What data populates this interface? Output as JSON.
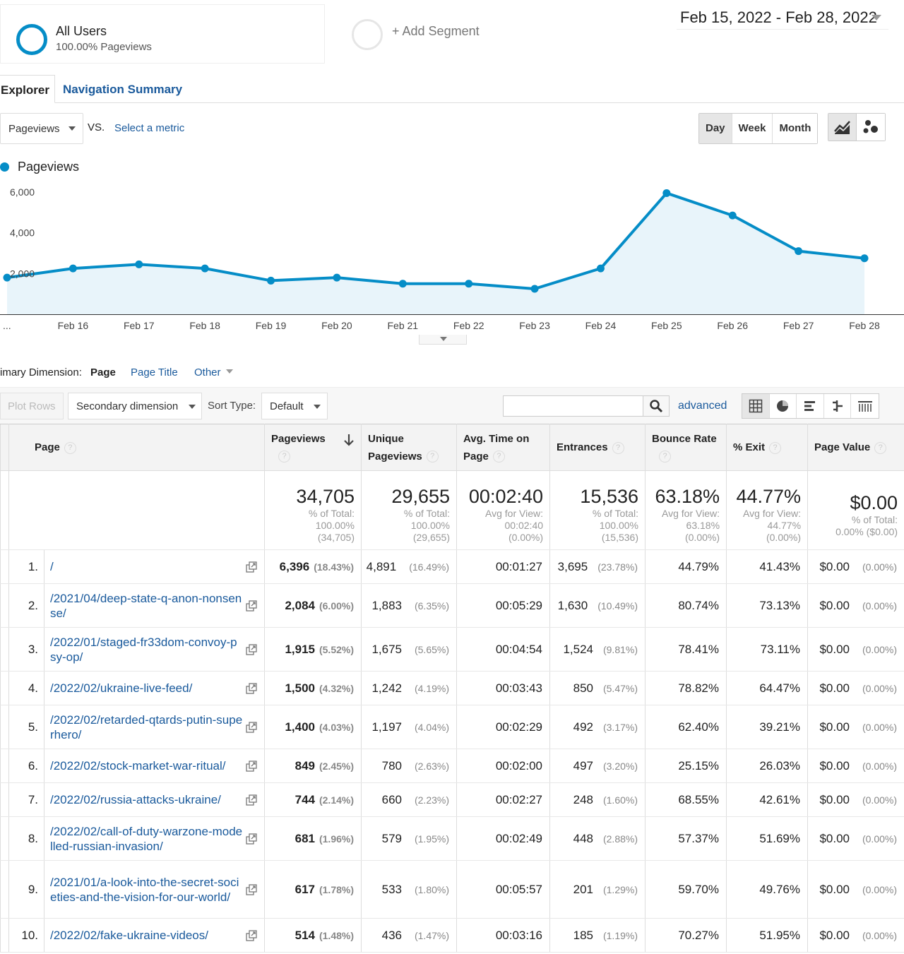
{
  "segment": {
    "name": "All Users",
    "subtitle": "100.00% Pageviews",
    "add_label": "+ Add Segment"
  },
  "date_range": "Feb 15, 2022 - Feb 28, 2022",
  "tabs": [
    {
      "label": "Explorer",
      "active": true
    },
    {
      "label": "Navigation Summary",
      "active": false
    }
  ],
  "metric_select": {
    "value": "Pageviews",
    "vs": "VS.",
    "select_metric": "Select a metric"
  },
  "period_buttons": [
    {
      "label": "Day",
      "active": true
    },
    {
      "label": "Week",
      "active": false
    },
    {
      "label": "Month",
      "active": false
    }
  ],
  "colors": {
    "accent": "#058dc7",
    "link": "#1a5a9c",
    "area_fill": "#e8f4fa"
  },
  "chart_data": {
    "type": "line",
    "legend": "Pageviews",
    "x": [
      "...",
      "Feb 16",
      "Feb 17",
      "Feb 18",
      "Feb 19",
      "Feb 20",
      "Feb 21",
      "Feb 22",
      "Feb 23",
      "Feb 24",
      "Feb 25",
      "Feb 26",
      "Feb 27",
      "Feb 28"
    ],
    "series": [
      {
        "name": "Pageviews",
        "values": [
          1800,
          2250,
          2450,
          2250,
          1650,
          1800,
          1500,
          1500,
          1250,
          2250,
          5950,
          4850,
          3100,
          2750
        ]
      }
    ],
    "y_ticks": [
      "6,000",
      "4,000",
      "2,000"
    ],
    "y_tick_values": [
      6000,
      4000,
      2000
    ],
    "ylim": [
      0,
      6000
    ],
    "grid": false,
    "area": true
  },
  "dimension": {
    "label": "imary Dimension:",
    "active": "Page",
    "links": [
      "Page Title",
      "Other"
    ]
  },
  "toolbar": {
    "plot_rows": "Plot Rows",
    "secondary_dimension": "Secondary dimension",
    "sort_label": "Sort Type:",
    "sort_value": "Default",
    "advanced": "advanced"
  },
  "table": {
    "headers": {
      "page": "Page",
      "pageviews": "Pageviews",
      "unique_pageviews": "Unique Pageviews",
      "avg_time": "Avg. Time on Page",
      "entrances": "Entrances",
      "bounce_rate": "Bounce Rate",
      "exit": "% Exit",
      "page_value": "Page Value"
    },
    "help_mark": "?",
    "totals": {
      "pageviews": {
        "value": "34,705",
        "l1": "% of Total:",
        "l2": "100.00%",
        "l3": "(34,705)"
      },
      "unique_pageviews": {
        "value": "29,655",
        "l1": "% of Total:",
        "l2": "100.00%",
        "l3": "(29,655)"
      },
      "avg_time": {
        "value": "00:02:40",
        "l1": "Avg for View:",
        "l2": "00:02:40",
        "l3": "(0.00%)"
      },
      "entrances": {
        "value": "15,536",
        "l1": "% of Total:",
        "l2": "100.00%",
        "l3": "(15,536)"
      },
      "bounce_rate": {
        "value": "63.18%",
        "l1": "Avg for View:",
        "l2": "63.18%",
        "l3": "(0.00%)"
      },
      "exit": {
        "value": "44.77%",
        "l1": "Avg for View:",
        "l2": "44.77%",
        "l3": "(0.00%)"
      },
      "page_value": {
        "value": "$0.00",
        "l1": "% of Total:",
        "l2": "0.00% ($0.00)",
        "l3": ""
      }
    },
    "rows": [
      {
        "rank": "1.",
        "page": "/",
        "pv": "6,396",
        "pv_pct": "(18.43%)",
        "upv": "4,891",
        "upv_pct": "(16.49%)",
        "time": "00:01:27",
        "ent": "3,695",
        "ent_pct": "(23.78%)",
        "bounce": "44.79%",
        "exit": "41.43%",
        "value": "$0.00",
        "value_pct": "(0.00%)"
      },
      {
        "rank": "2.",
        "page": "/2021/04/deep-state-q-anon-nonsense/",
        "pv": "2,084",
        "pv_pct": "(6.00%)",
        "upv": "1,883",
        "upv_pct": "(6.35%)",
        "time": "00:05:29",
        "ent": "1,630",
        "ent_pct": "(10.49%)",
        "bounce": "80.74%",
        "exit": "73.13%",
        "value": "$0.00",
        "value_pct": "(0.00%)"
      },
      {
        "rank": "3.",
        "page": "/2022/01/staged-fr33dom-convoy-psy-op/",
        "pv": "1,915",
        "pv_pct": "(5.52%)",
        "upv": "1,675",
        "upv_pct": "(5.65%)",
        "time": "00:04:54",
        "ent": "1,524",
        "ent_pct": "(9.81%)",
        "bounce": "78.41%",
        "exit": "73.11%",
        "value": "$0.00",
        "value_pct": "(0.00%)"
      },
      {
        "rank": "4.",
        "page": "/2022/02/ukraine-live-feed/",
        "pv": "1,500",
        "pv_pct": "(4.32%)",
        "upv": "1,242",
        "upv_pct": "(4.19%)",
        "time": "00:03:43",
        "ent": "850",
        "ent_pct": "(5.47%)",
        "bounce": "78.82%",
        "exit": "64.47%",
        "value": "$0.00",
        "value_pct": "(0.00%)"
      },
      {
        "rank": "5.",
        "page": "/2022/02/retarded-qtards-putin-superhero/",
        "pv": "1,400",
        "pv_pct": "(4.03%)",
        "upv": "1,197",
        "upv_pct": "(4.04%)",
        "time": "00:02:29",
        "ent": "492",
        "ent_pct": "(3.17%)",
        "bounce": "62.40%",
        "exit": "39.21%",
        "value": "$0.00",
        "value_pct": "(0.00%)"
      },
      {
        "rank": "6.",
        "page": "/2022/02/stock-market-war-ritual/",
        "pv": "849",
        "pv_pct": "(2.45%)",
        "upv": "780",
        "upv_pct": "(2.63%)",
        "time": "00:02:00",
        "ent": "497",
        "ent_pct": "(3.20%)",
        "bounce": "25.15%",
        "exit": "26.03%",
        "value": "$0.00",
        "value_pct": "(0.00%)"
      },
      {
        "rank": "7.",
        "page": "/2022/02/russia-attacks-ukraine/",
        "pv": "744",
        "pv_pct": "(2.14%)",
        "upv": "660",
        "upv_pct": "(2.23%)",
        "time": "00:02:27",
        "ent": "248",
        "ent_pct": "(1.60%)",
        "bounce": "68.55%",
        "exit": "42.61%",
        "value": "$0.00",
        "value_pct": "(0.00%)"
      },
      {
        "rank": "8.",
        "page": "/2022/02/call-of-duty-warzone-modelled-russian-invasion/",
        "pv": "681",
        "pv_pct": "(1.96%)",
        "upv": "579",
        "upv_pct": "(1.95%)",
        "time": "00:02:49",
        "ent": "448",
        "ent_pct": "(2.88%)",
        "bounce": "57.37%",
        "exit": "51.69%",
        "value": "$0.00",
        "value_pct": "(0.00%)"
      },
      {
        "rank": "9.",
        "page": "/2021/01/a-look-into-the-secret-societies-and-the-vision-for-our-world/",
        "pv": "617",
        "pv_pct": "(1.78%)",
        "upv": "533",
        "upv_pct": "(1.80%)",
        "time": "00:05:57",
        "ent": "201",
        "ent_pct": "(1.29%)",
        "bounce": "59.70%",
        "exit": "49.76%",
        "value": "$0.00",
        "value_pct": "(0.00%)"
      },
      {
        "rank": "10.",
        "page": "/2022/02/fake-ukraine-videos/",
        "pv": "514",
        "pv_pct": "(1.48%)",
        "upv": "436",
        "upv_pct": "(1.47%)",
        "time": "00:03:16",
        "ent": "185",
        "ent_pct": "(1.19%)",
        "bounce": "70.27%",
        "exit": "51.95%",
        "value": "$0.00",
        "value_pct": "(0.00%)"
      }
    ]
  }
}
